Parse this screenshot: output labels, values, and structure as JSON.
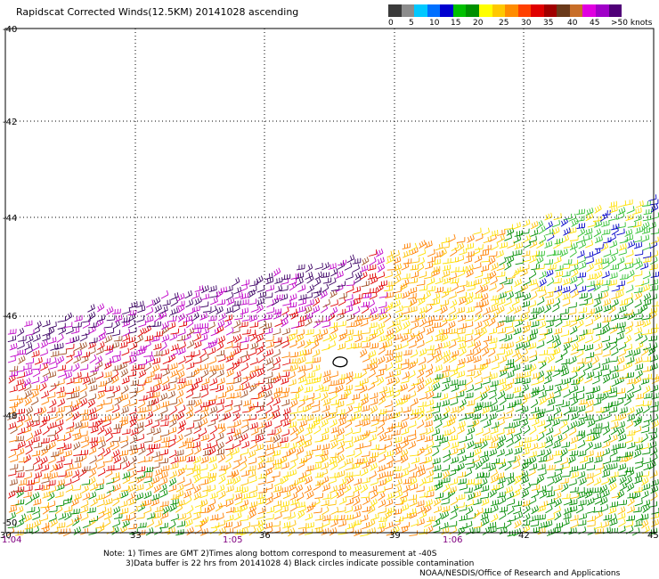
{
  "title": "Rapidscat Corrected Winds(12.5KM) 20141028 ascending",
  "colorbar": {
    "colors": [
      "#3a3a3a",
      "#8c8c8c",
      "#00c8ff",
      "#0070ff",
      "#0000d0",
      "#00c000",
      "#009000",
      "#ffff00",
      "#ffc800",
      "#ff8c00",
      "#ff4000",
      "#e00000",
      "#a00000",
      "#6a3a1a",
      "#c86e28",
      "#e000e0",
      "#a000c8",
      "#500078"
    ],
    "labels": [
      "0",
      "5",
      "10",
      "15",
      "20",
      "25",
      "30",
      "35",
      "40",
      "45",
      ">50 knots"
    ]
  },
  "map": {
    "lat_labels": [
      "-40",
      "-42",
      "-44",
      "-46",
      "-48",
      "-50"
    ],
    "lon_labels": [
      "30",
      "33",
      "36",
      "39",
      "42",
      "45"
    ],
    "time_labels": [
      "1:04",
      "1:05",
      "1:06"
    ]
  },
  "notes": {
    "line1": "Note: 1) Times are GMT 2)Times along bottom correspond to measurement at -40S",
    "line2": "3)Data buffer is 22 hrs from 20141028 4) Black circles indicate possible contamination",
    "credit": "NOAA/NESDIS/Office of Research and Applications"
  },
  "wind_colors": {
    "purple_dark": "#3c0064",
    "magenta": "#c000c8",
    "red": "#e00000",
    "orange": "#ff8000",
    "brown": "#a05028",
    "yellow": "#ffe000",
    "gold": "#ffc000",
    "green": "#008c00",
    "green_light": "#30c030",
    "blue": "#0000c8",
    "black": "#000000"
  }
}
